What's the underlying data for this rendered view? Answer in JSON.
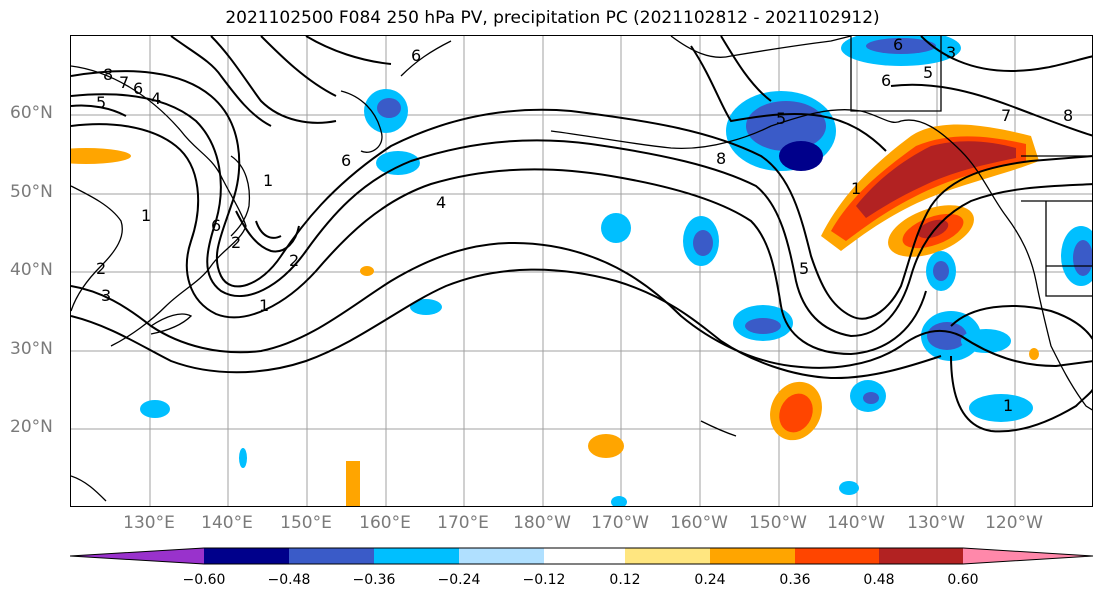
{
  "title": "2021102500 F084 250 hPa PV, precipitation PC (2021102812 - 2021102912)",
  "lat_labels": [
    "60°N",
    "50°N",
    "40°N",
    "30°N",
    "20°N"
  ],
  "lon_labels": [
    "130°E",
    "140°E",
    "150°E",
    "160°E",
    "170°E",
    "180°W",
    "170°W",
    "160°W",
    "150°W",
    "140°W",
    "130°W",
    "120°W"
  ],
  "contour_labels": [
    "8",
    "7",
    "6",
    "5",
    "4",
    "6",
    "1",
    "1",
    "2",
    "2",
    "3",
    "1",
    "6",
    "6",
    "4",
    "3",
    "5",
    "6",
    "7",
    "8",
    "8",
    "1",
    "5",
    "5",
    "1",
    "2",
    "6"
  ],
  "colorbar": {
    "colors": [
      "#9932cc",
      "#00008b",
      "#3a5bc8",
      "#00bfff",
      "#b0e0ff",
      "#ffffff",
      "#ffe680",
      "#ffa500",
      "#ff4500",
      "#b22222",
      "#ff88aa"
    ],
    "tick_labels": [
      "−0.60",
      "−0.48",
      "−0.36",
      "−0.24",
      "−0.12",
      "0.12",
      "0.24",
      "0.36",
      "0.48",
      "0.60"
    ]
  }
}
